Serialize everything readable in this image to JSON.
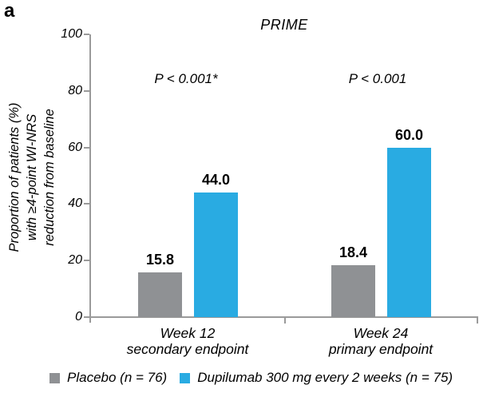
{
  "panel_label": "a",
  "title": "PRIME",
  "y_axis": {
    "label_line1": "Proportion of patients (%)",
    "label_line2": "with ≥4-point WI-NRS",
    "label_line3": "reduction from baseline"
  },
  "groups": [
    {
      "label_line1": "Week 12",
      "label_line2": "secondary endpoint",
      "p_value": "P < 0.001*"
    },
    {
      "label_line1": "Week 24",
      "label_line2": "primary endpoint",
      "p_value": "P < 0.001"
    }
  ],
  "legend": [
    {
      "label": "Placebo (n = 76)",
      "color": "#8f9194"
    },
    {
      "label": "Dupilumab 300 mg every 2 weeks (n = 75)",
      "color": "#29abe2"
    }
  ],
  "colors": {
    "placebo": "#8f9194",
    "dupilumab": "#29abe2",
    "axis": "#9a9a9a",
    "text": "#000000"
  },
  "chart_data": {
    "type": "bar",
    "title": "PRIME",
    "xlabel": "",
    "ylabel": "Proportion of patients (%) with ≥4-point WI-NRS reduction from baseline",
    "ylim": [
      0,
      100
    ],
    "yticks": [
      0,
      20,
      40,
      60,
      80,
      100
    ],
    "grid": false,
    "legend_position": "bottom",
    "categories": [
      "Week 12 secondary endpoint",
      "Week 24 primary endpoint"
    ],
    "series": [
      {
        "name": "Placebo (n = 76)",
        "color": "#8f9194",
        "values": [
          15.8,
          18.4
        ]
      },
      {
        "name": "Dupilumab 300 mg every 2 weeks (n = 75)",
        "color": "#29abe2",
        "values": [
          44.0,
          60.0
        ]
      }
    ],
    "value_label_decimals": 1,
    "annotations": [
      {
        "group": "Week 12 secondary endpoint",
        "text": "P < 0.001*"
      },
      {
        "group": "Week 24 primary endpoint",
        "text": "P < 0.001"
      }
    ]
  }
}
